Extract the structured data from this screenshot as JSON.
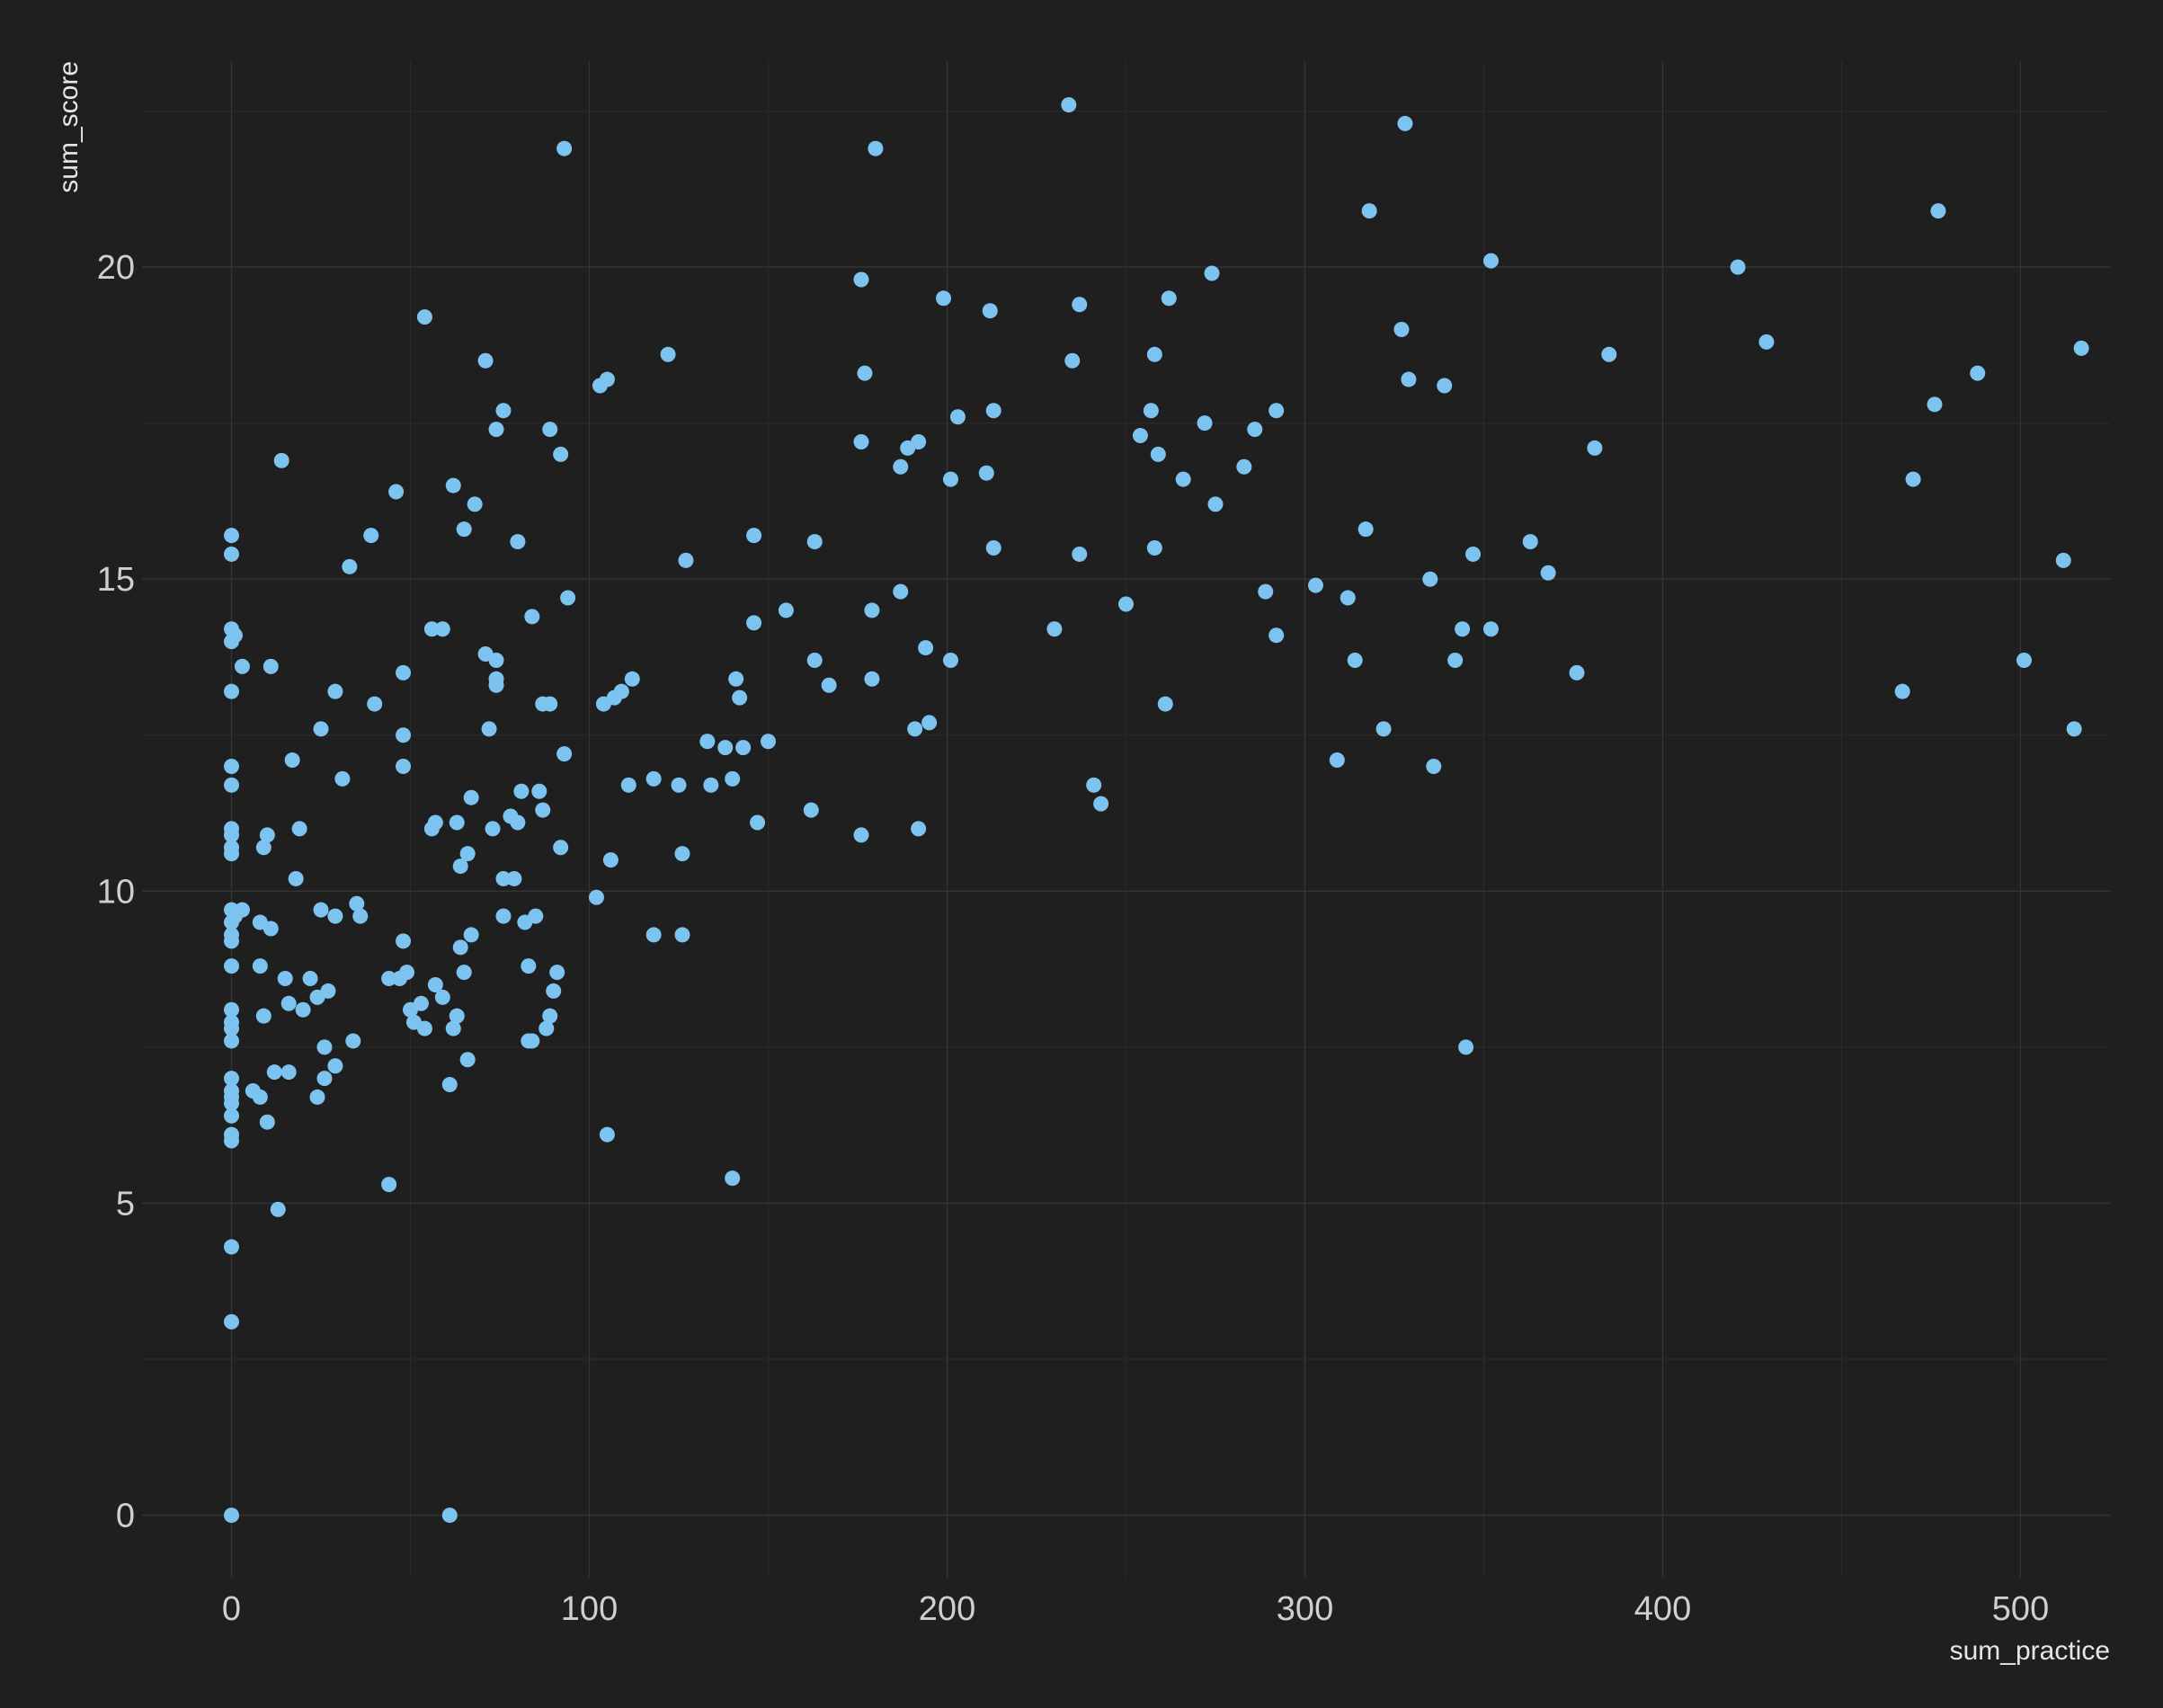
{
  "chart_data": {
    "type": "scatter",
    "title": "",
    "xlabel": "sum_practice",
    "ylabel": "sum_score",
    "xlim": [
      -25,
      525
    ],
    "ylim": [
      -1,
      23.3
    ],
    "x_ticks": [
      0,
      100,
      200,
      300,
      400,
      500
    ],
    "y_ticks": [
      0,
      5,
      10,
      15,
      20
    ],
    "x_tick_labels": [
      "0",
      "100",
      "200",
      "300",
      "400",
      "500"
    ],
    "y_tick_labels": [
      "0",
      "5",
      "10",
      "15",
      "20"
    ],
    "grid": true,
    "background": "#1f1f1f",
    "point_color": "#7dc3f0",
    "points": [
      [
        0,
        0
      ],
      [
        0,
        3.1
      ],
      [
        0,
        4.3
      ],
      [
        0,
        6.0
      ],
      [
        0,
        6.1
      ],
      [
        0,
        6.4
      ],
      [
        0,
        6.6
      ],
      [
        0,
        6.7
      ],
      [
        0,
        6.8
      ],
      [
        0,
        7.0
      ],
      [
        0,
        7.6
      ],
      [
        0,
        7.8
      ],
      [
        0,
        7.9
      ],
      [
        0,
        8.1
      ],
      [
        0,
        8.8
      ],
      [
        0,
        9.2
      ],
      [
        0,
        9.3
      ],
      [
        0,
        9.5
      ],
      [
        0,
        9.7
      ],
      [
        0,
        10.6
      ],
      [
        0,
        10.7
      ],
      [
        0,
        10.9
      ],
      [
        0,
        11.0
      ],
      [
        0,
        11.7
      ],
      [
        0,
        12.0
      ],
      [
        0,
        13.2
      ],
      [
        0,
        14.0
      ],
      [
        0,
        14.2
      ],
      [
        0,
        15.4
      ],
      [
        0,
        15.7
      ],
      [
        1,
        14.1
      ],
      [
        1,
        9.6
      ],
      [
        3,
        9.7
      ],
      [
        3,
        13.6
      ],
      [
        6,
        6.8
      ],
      [
        8,
        9.5
      ],
      [
        8,
        8.8
      ],
      [
        8,
        6.7
      ],
      [
        9,
        10.7
      ],
      [
        9,
        8.0
      ],
      [
        10,
        10.9
      ],
      [
        10,
        6.3
      ],
      [
        11,
        13.6
      ],
      [
        11,
        9.4
      ],
      [
        12,
        7.1
      ],
      [
        13,
        4.9
      ],
      [
        14,
        16.9
      ],
      [
        15,
        8.6
      ],
      [
        16,
        7.1
      ],
      [
        16,
        8.2
      ],
      [
        17,
        12.1
      ],
      [
        18,
        10.2
      ],
      [
        19,
        11.0
      ],
      [
        20,
        8.1
      ],
      [
        22,
        8.6
      ],
      [
        24,
        6.7
      ],
      [
        24,
        8.3
      ],
      [
        25,
        9.7
      ],
      [
        25,
        12.6
      ],
      [
        26,
        7.0
      ],
      [
        26,
        7.5
      ],
      [
        27,
        8.4
      ],
      [
        29,
        9.6
      ],
      [
        29,
        7.2
      ],
      [
        29,
        13.2
      ],
      [
        31,
        11.8
      ],
      [
        33,
        15.2
      ],
      [
        34,
        7.6
      ],
      [
        35,
        9.8
      ],
      [
        36,
        9.6
      ],
      [
        39,
        15.7
      ],
      [
        40,
        13.0
      ],
      [
        44,
        8.6
      ],
      [
        44,
        5.3
      ],
      [
        46,
        16.4
      ],
      [
        47,
        8.6
      ],
      [
        48,
        12.0
      ],
      [
        48,
        12.5
      ],
      [
        48,
        13.5
      ],
      [
        48,
        9.2
      ],
      [
        49,
        8.7
      ],
      [
        50,
        8.1
      ],
      [
        51,
        7.9
      ],
      [
        53,
        8.2
      ],
      [
        54,
        19.2
      ],
      [
        54,
        7.8
      ],
      [
        56,
        14.2
      ],
      [
        56,
        11.0
      ],
      [
        57,
        8.5
      ],
      [
        57,
        11.1
      ],
      [
        59,
        14.2
      ],
      [
        59,
        8.3
      ],
      [
        61,
        6.9
      ],
      [
        61,
        0
      ],
      [
        62,
        16.5
      ],
      [
        62,
        7.8
      ],
      [
        63,
        8.0
      ],
      [
        63,
        11.1
      ],
      [
        64,
        10.4
      ],
      [
        64,
        9.1
      ],
      [
        65,
        15.8
      ],
      [
        65,
        8.7
      ],
      [
        66,
        10.6
      ],
      [
        66,
        7.3
      ],
      [
        67,
        11.5
      ],
      [
        67,
        9.3
      ],
      [
        68,
        16.2
      ],
      [
        71,
        13.8
      ],
      [
        71,
        18.5
      ],
      [
        72,
        12.6
      ],
      [
        73,
        11.0
      ],
      [
        74,
        17.4
      ],
      [
        74,
        13.7
      ],
      [
        74,
        13.3
      ],
      [
        74,
        13.4
      ],
      [
        76,
        17.7
      ],
      [
        76,
        10.2
      ],
      [
        76,
        9.6
      ],
      [
        78,
        11.2
      ],
      [
        79,
        10.2
      ],
      [
        80,
        15.6
      ],
      [
        80,
        11.1
      ],
      [
        81,
        11.6
      ],
      [
        82,
        9.5
      ],
      [
        83,
        8.8
      ],
      [
        83,
        7.6
      ],
      [
        84,
        7.6
      ],
      [
        84,
        14.4
      ],
      [
        85,
        9.6
      ],
      [
        86,
        11.6
      ],
      [
        87,
        11.3
      ],
      [
        87,
        13.0
      ],
      [
        88,
        7.8
      ],
      [
        89,
        8.0
      ],
      [
        89,
        17.4
      ],
      [
        89,
        13.0
      ],
      [
        90,
        8.4
      ],
      [
        91,
        8.7
      ],
      [
        92,
        17.0
      ],
      [
        92,
        10.7
      ],
      [
        93,
        12.2
      ],
      [
        93,
        21.9
      ],
      [
        94,
        14.7
      ],
      [
        102,
        9.9
      ],
      [
        103,
        18.1
      ],
      [
        104,
        13.0
      ],
      [
        105,
        18.2
      ],
      [
        105,
        6.1
      ],
      [
        106,
        10.5
      ],
      [
        107,
        13.1
      ],
      [
        109,
        13.2
      ],
      [
        111,
        11.7
      ],
      [
        112,
        13.4
      ],
      [
        118,
        9.3
      ],
      [
        118,
        11.8
      ],
      [
        122,
        18.6
      ],
      [
        125,
        11.7
      ],
      [
        126,
        9.3
      ],
      [
        126,
        10.6
      ],
      [
        127,
        15.3
      ],
      [
        133,
        12.4
      ],
      [
        134,
        11.7
      ],
      [
        138,
        12.3
      ],
      [
        140,
        11.8
      ],
      [
        140,
        5.4
      ],
      [
        141,
        13.4
      ],
      [
        142,
        13.1
      ],
      [
        143,
        12.3
      ],
      [
        146,
        14.3
      ],
      [
        146,
        15.7
      ],
      [
        147,
        11.1
      ],
      [
        150,
        12.4
      ],
      [
        155,
        14.5
      ],
      [
        162,
        11.3
      ],
      [
        163,
        15.6
      ],
      [
        163,
        13.7
      ],
      [
        167,
        13.3
      ],
      [
        176,
        19.8
      ],
      [
        176,
        10.9
      ],
      [
        176,
        17.2
      ],
      [
        177,
        18.3
      ],
      [
        179,
        14.5
      ],
      [
        179,
        13.4
      ],
      [
        180,
        21.9
      ],
      [
        187,
        16.8
      ],
      [
        187,
        14.8
      ],
      [
        189,
        17.1
      ],
      [
        191,
        12.6
      ],
      [
        192,
        17.2
      ],
      [
        192,
        11.0
      ],
      [
        194,
        13.9
      ],
      [
        195,
        12.7
      ],
      [
        199,
        19.5
      ],
      [
        201,
        16.6
      ],
      [
        201,
        13.7
      ],
      [
        203,
        17.6
      ],
      [
        211,
        16.7
      ],
      [
        212,
        19.3
      ],
      [
        213,
        15.5
      ],
      [
        213,
        17.7
      ],
      [
        230,
        14.2
      ],
      [
        234,
        22.6
      ],
      [
        235,
        18.5
      ],
      [
        237,
        19.4
      ],
      [
        237,
        15.4
      ],
      [
        241,
        11.7
      ],
      [
        243,
        11.4
      ],
      [
        250,
        14.6
      ],
      [
        254,
        17.3
      ],
      [
        257,
        17.7
      ],
      [
        258,
        18.6
      ],
      [
        258,
        15.5
      ],
      [
        259,
        17.0
      ],
      [
        261,
        13.0
      ],
      [
        262,
        19.5
      ],
      [
        266,
        16.6
      ],
      [
        272,
        17.5
      ],
      [
        274,
        19.9
      ],
      [
        275,
        16.2
      ],
      [
        283,
        16.8
      ],
      [
        286,
        17.4
      ],
      [
        289,
        14.8
      ],
      [
        292,
        17.7
      ],
      [
        292,
        14.1
      ],
      [
        303,
        14.9
      ],
      [
        309,
        12.1
      ],
      [
        312,
        14.7
      ],
      [
        314,
        13.7
      ],
      [
        317,
        15.8
      ],
      [
        318,
        20.9
      ],
      [
        322,
        12.6
      ],
      [
        327,
        19.0
      ],
      [
        328,
        22.3
      ],
      [
        329,
        18.2
      ],
      [
        335,
        15.0
      ],
      [
        336,
        12.0
      ],
      [
        339,
        18.1
      ],
      [
        342,
        13.7
      ],
      [
        344,
        14.2
      ],
      [
        345,
        7.5
      ],
      [
        347,
        15.4
      ],
      [
        352,
        14.2
      ],
      [
        352,
        20.1
      ],
      [
        363,
        15.6
      ],
      [
        368,
        15.1
      ],
      [
        376,
        13.5
      ],
      [
        381,
        17.1
      ],
      [
        385,
        18.6
      ],
      [
        421,
        20.0
      ],
      [
        429,
        18.8
      ],
      [
        467,
        13.2
      ],
      [
        470,
        16.6
      ],
      [
        476,
        17.8
      ],
      [
        477,
        20.9
      ],
      [
        488,
        18.3
      ],
      [
        501,
        13.7
      ],
      [
        512,
        15.3
      ],
      [
        515,
        12.6
      ],
      [
        517,
        18.7
      ]
    ]
  }
}
